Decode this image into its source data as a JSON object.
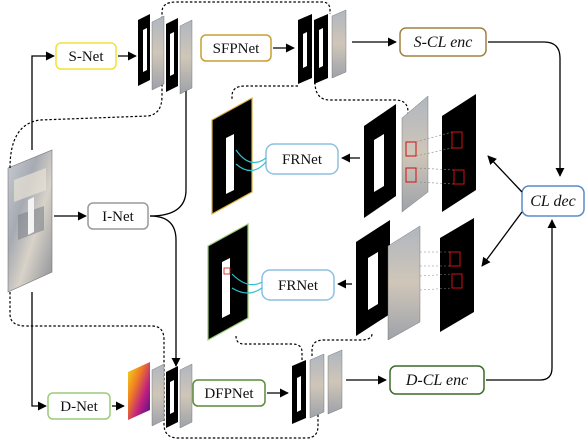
{
  "modules": {
    "s_net": "S-Net",
    "i_net": "I-Net",
    "d_net": "D-Net",
    "sfpnet": "SFPNet",
    "dfpnet": "DFPNet",
    "frnet_top": "FRNet",
    "frnet_bottom": "FRNet",
    "s_cl_enc": "S-CL enc",
    "d_cl_enc": "D-CL enc",
    "cl_dec": "CL dec"
  },
  "colors": {
    "s_net_border": "#f2e23a",
    "i_net_border": "#9a9a9a",
    "d_net_border": "#9ccc7a",
    "sfpnet_border": "#c8a030",
    "dfpnet_border": "#5a8a3a",
    "frnet_border": "#8cc0e0",
    "s_cl_enc_border": "#a08040",
    "d_cl_enc_border": "#3a6a2a",
    "cl_dec_border": "#5a8ac8",
    "highlight_red": "#d01010",
    "frnet_link": "#30c0d0"
  }
}
